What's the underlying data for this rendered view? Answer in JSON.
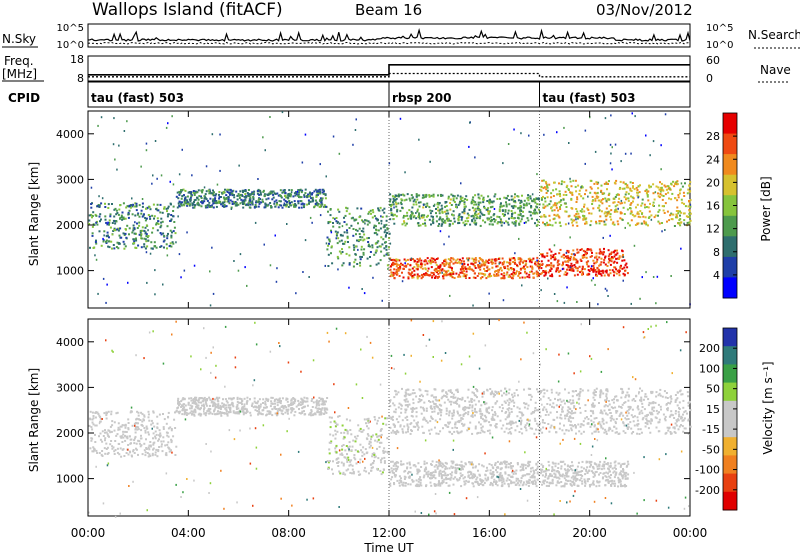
{
  "header": {
    "site": "Wallops Island (fitACF)",
    "beam": "Beam 16",
    "date": "03/Nov/2012"
  },
  "noise_panel": {
    "left_label": "N.Sky",
    "left_ticks": [
      "10^5",
      "10^0"
    ],
    "right_ticks": [
      "10^5",
      "10^0"
    ],
    "right_label": "N.Search"
  },
  "freq_panel": {
    "left_label": "Freq.",
    "left_unit": "[MHz]",
    "left_ticks": [
      "18",
      "8"
    ],
    "right_ticks": [
      "60",
      "0"
    ],
    "right_label": "Nave",
    "freq_steps": [
      {
        "t0": 0.0,
        "t1": 12.0,
        "mhz": 10.5
      },
      {
        "t0": 12.0,
        "t1": 24.0,
        "mhz": 14.5
      }
    ],
    "nave_steps": [
      {
        "t0": 0.0,
        "t1": 12.0,
        "nave": 10
      },
      {
        "t0": 12.0,
        "t1": 18.0,
        "nave": 18
      },
      {
        "t0": 18.0,
        "t1": 24.0,
        "nave": 10
      }
    ]
  },
  "cpid_panel": {
    "label": "CPID",
    "segments": [
      {
        "start_hour": 0,
        "text": "tau (fast) 503"
      },
      {
        "start_hour": 12,
        "text": "rbsp 200"
      },
      {
        "start_hour": 18,
        "text": "tau (fast) 503"
      }
    ]
  },
  "colors": {
    "power_scale": [
      "#0000ff",
      "#1f3fa8",
      "#2e6e6e",
      "#4d9a4d",
      "#86c43c",
      "#d6c12e",
      "#f08a1e",
      "#ef4a12",
      "#e60000"
    ],
    "velocity_scale": [
      "#2233aa",
      "#2f7a7a",
      "#3aa046",
      "#8ed13a",
      "#c8c8c8",
      "#c8c8c8",
      "#f0b030",
      "#f08020",
      "#e84010",
      "#e00000"
    ],
    "ground_scatter": "#c0c0c0"
  },
  "chart_data": {
    "type": "heatmap",
    "x_axis": {
      "label": "Time UT",
      "range_hours": [
        0,
        24
      ],
      "ticks": [
        "00:00",
        "04:00",
        "08:00",
        "12:00",
        "16:00",
        "20:00",
        "00:00"
      ]
    },
    "y_axis": {
      "label": "Slant Range [km]",
      "range_km": [
        180,
        4500
      ],
      "ticks": [
        "1000",
        "2000",
        "3000",
        "4000"
      ]
    },
    "mode_change_hours": [
      12,
      18
    ],
    "power_panel": {
      "colorbar_label": "Power [dB]",
      "colorbar_ticks": [
        "28",
        "24",
        "20",
        "16",
        "12",
        "8",
        "4"
      ],
      "range_db": [
        0,
        30
      ],
      "echo_bands": [
        {
          "t0": 0.0,
          "t1": 3.5,
          "km0": 1500,
          "km1": 2500,
          "db": 10
        },
        {
          "t0": 3.5,
          "t1": 9.5,
          "km0": 2400,
          "km1": 2800,
          "db": 9
        },
        {
          "t0": 9.5,
          "t1": 12.0,
          "km0": 1100,
          "km1": 2400,
          "db": 11
        },
        {
          "t0": 12.0,
          "t1": 18.0,
          "km0": 850,
          "km1": 1300,
          "db": 24
        },
        {
          "t0": 12.0,
          "t1": 18.0,
          "km0": 2000,
          "km1": 2700,
          "db": 12
        },
        {
          "t0": 18.0,
          "t1": 21.5,
          "km0": 900,
          "km1": 1500,
          "db": 26
        },
        {
          "t0": 18.0,
          "t1": 24.0,
          "km0": 2000,
          "km1": 3000,
          "db": 18
        }
      ]
    },
    "velocity_panel": {
      "colorbar_label": "Velocity [m s⁻¹]",
      "colorbar_ticks": [
        "200",
        "100",
        "50",
        "15",
        "-15",
        "-50",
        "-100",
        "-200"
      ],
      "range_ms": [
        -250,
        250
      ],
      "echo_bands": [
        {
          "t0": 0.0,
          "t1": 3.5,
          "km0": 1500,
          "km1": 2500,
          "vel": 0
        },
        {
          "t0": 3.5,
          "t1": 9.5,
          "km0": 2400,
          "km1": 2800,
          "vel": 0
        },
        {
          "t0": 9.5,
          "t1": 12.0,
          "km0": 1100,
          "km1": 2400,
          "vel": 30
        },
        {
          "t0": 12.0,
          "t1": 21.5,
          "km0": 850,
          "km1": 1400,
          "vel": 0
        },
        {
          "t0": 12.0,
          "t1": 24.0,
          "km0": 2000,
          "km1": 3000,
          "vel": 0
        }
      ]
    }
  }
}
